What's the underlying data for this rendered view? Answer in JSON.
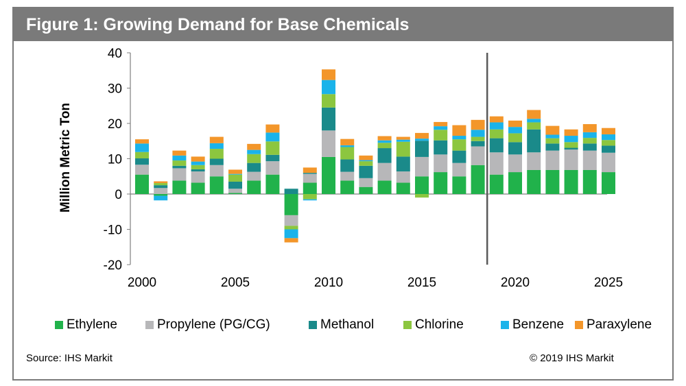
{
  "title": "Figure 1: Growing Demand for Base Chemicals",
  "source": "Source: IHS Markit",
  "copyright": "© 2019 IHS Markit",
  "chart_data": {
    "type": "bar",
    "stacked": true,
    "title": "Figure 1: Growing Demand for Base Chemicals",
    "xlabel": "",
    "ylabel": "Million Metric Ton",
    "ylim": [
      -20,
      40
    ],
    "yticks": [
      "40",
      "30",
      "20",
      "10",
      "0",
      "-10",
      "-20"
    ],
    "xticks": [
      "2000",
      "2005",
      "2010",
      "2015",
      "2020",
      "2025"
    ],
    "categories": [
      2000,
      2001,
      2002,
      2003,
      2004,
      2005,
      2006,
      2007,
      2008,
      2009,
      2010,
      2011,
      2012,
      2013,
      2014,
      2015,
      2016,
      2017,
      2018,
      2019,
      2020,
      2021,
      2022,
      2023,
      2024,
      2025
    ],
    "forecast_divider_after": 2018,
    "legend_position": "bottom",
    "grid": false,
    "series": [
      {
        "name": "Ethylene",
        "color": "#21b24b",
        "values": [
          5.5,
          -0.5,
          3.8,
          3.2,
          5.0,
          0.3,
          3.8,
          5.5,
          -6.0,
          3.2,
          10.5,
          3.8,
          2.0,
          3.8,
          3.2,
          5.0,
          6.2,
          5.0,
          8.2,
          5.5,
          6.2,
          6.8,
          6.8,
          6.8,
          6.8,
          6.2
        ]
      },
      {
        "name": "Propylene (PG/CG)",
        "color": "#b7b7b9",
        "values": [
          2.8,
          1.7,
          3.5,
          3.2,
          3.2,
          1.2,
          2.5,
          3.8,
          -3.0,
          2.5,
          7.5,
          2.5,
          2.5,
          5.0,
          3.2,
          5.5,
          5.0,
          3.8,
          5.3,
          6.3,
          5.0,
          5.0,
          5.5,
          5.8,
          5.5,
          5.5
        ]
      },
      {
        "name": "Methanol",
        "color": "#1a8a8a",
        "values": [
          1.8,
          0.8,
          0.7,
          0.6,
          1.8,
          2.0,
          2.5,
          1.8,
          1.5,
          0.3,
          6.5,
          3.5,
          3.5,
          4.2,
          4.2,
          4.6,
          4.0,
          3.5,
          1.5,
          4.0,
          3.5,
          6.5,
          2.0,
          0.5,
          2.0,
          2.0
        ]
      },
      {
        "name": "Chlorine",
        "color": "#8cc63f",
        "values": [
          1.8,
          0.6,
          1.5,
          1.2,
          2.8,
          2.0,
          2.5,
          3.8,
          -1.0,
          -1.5,
          3.8,
          3.5,
          1.3,
          1.5,
          4.2,
          -1.0,
          3.0,
          3.2,
          1.2,
          2.5,
          2.5,
          2.0,
          1.5,
          1.6,
          1.6,
          1.6
        ]
      },
      {
        "name": "Benzene",
        "color": "#1ab3ea",
        "values": [
          2.4,
          -1.3,
          1.4,
          1.0,
          1.6,
          0.2,
          1.2,
          2.5,
          -2.5,
          -0.3,
          4.0,
          0.5,
          0.3,
          0.7,
          0.6,
          0.6,
          1.0,
          1.0,
          2.0,
          2.0,
          1.8,
          1.0,
          1.0,
          1.8,
          1.6,
          1.6
        ]
      },
      {
        "name": "Paraxylene",
        "color": "#f3962a",
        "values": [
          1.2,
          0.5,
          1.4,
          1.4,
          1.8,
          1.2,
          1.7,
          2.3,
          -1.2,
          1.5,
          3.0,
          1.8,
          1.3,
          1.2,
          0.8,
          1.6,
          1.2,
          3.0,
          2.8,
          1.7,
          1.8,
          2.5,
          2.5,
          1.8,
          2.3,
          1.8
        ]
      }
    ]
  }
}
